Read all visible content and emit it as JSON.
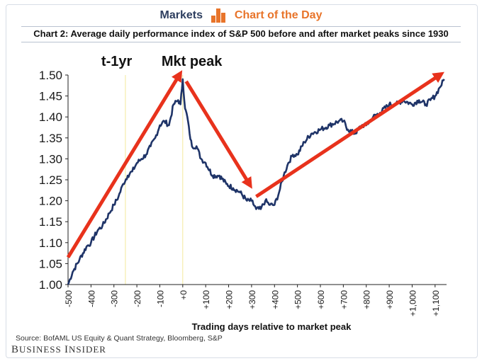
{
  "header": {
    "left_word": "Markets",
    "right_word": "Chart of the Day",
    "logo_icon": "bar-chart-icon",
    "accent_color": "#e8742a",
    "navy_color": "#2d3e5f"
  },
  "footer": {
    "source": "Source: BofAML US Equity & Quant Strategy, Bloomberg, S&P",
    "brand_first": "B",
    "brand_rest1": "USINESS ",
    "brand_second": "I",
    "brand_rest2": "NSIDER"
  },
  "chart_data": {
    "type": "line",
    "title": "Chart 2: Average daily performance index of S&P 500 before and after market peaks since 1930",
    "xlabel": "Trading days relative to market peak",
    "ylabel": "",
    "xlim": [
      -500,
      1150
    ],
    "ylim": [
      1.0,
      1.5
    ],
    "y_ticks": [
      1.0,
      1.05,
      1.1,
      1.15,
      1.2,
      1.25,
      1.3,
      1.35,
      1.4,
      1.45,
      1.5
    ],
    "y_tick_labels": [
      "1.00",
      "1.05",
      "1.10",
      "1.15",
      "1.20",
      "1.25",
      "1.30",
      "1.35",
      "1.40",
      "1.45",
      "1.50"
    ],
    "x_ticks": [
      -500,
      -400,
      -300,
      -200,
      -100,
      0,
      100,
      200,
      300,
      400,
      500,
      600,
      700,
      800,
      900,
      1000,
      1100
    ],
    "x_tick_labels": [
      "-500",
      "-400",
      "-300",
      "-200",
      "-100",
      "+0",
      "+100",
      "+200",
      "+300",
      "+400",
      "+500",
      "+600",
      "+700",
      "+800",
      "+900",
      "+1,000",
      "+1,100"
    ],
    "series": [
      {
        "name": "Average daily performance index",
        "color": "#1f3468",
        "x": [
          -500,
          -480,
          -450,
          -420,
          -400,
          -370,
          -350,
          -320,
          -300,
          -280,
          -260,
          -240,
          -220,
          -200,
          -180,
          -160,
          -140,
          -120,
          -100,
          -80,
          -60,
          -40,
          -20,
          -10,
          0,
          10,
          20,
          30,
          40,
          60,
          80,
          100,
          130,
          160,
          190,
          220,
          250,
          280,
          300,
          320,
          340,
          360,
          380,
          400,
          420,
          440,
          460,
          480,
          500,
          530,
          560,
          600,
          640,
          680,
          700,
          720,
          750,
          780,
          800,
          830,
          860,
          900,
          930,
          960,
          1000,
          1030,
          1060,
          1080,
          1100,
          1120,
          1140
        ],
        "values": [
          1.0,
          1.03,
          1.06,
          1.09,
          1.1,
          1.13,
          1.14,
          1.17,
          1.19,
          1.21,
          1.24,
          1.26,
          1.27,
          1.29,
          1.3,
          1.31,
          1.33,
          1.35,
          1.38,
          1.39,
          1.38,
          1.43,
          1.44,
          1.43,
          1.49,
          1.42,
          1.4,
          1.36,
          1.33,
          1.33,
          1.3,
          1.29,
          1.26,
          1.26,
          1.24,
          1.23,
          1.22,
          1.2,
          1.2,
          1.18,
          1.18,
          1.2,
          1.19,
          1.19,
          1.22,
          1.26,
          1.29,
          1.31,
          1.31,
          1.34,
          1.36,
          1.37,
          1.38,
          1.39,
          1.39,
          1.37,
          1.36,
          1.38,
          1.38,
          1.4,
          1.41,
          1.43,
          1.43,
          1.44,
          1.43,
          1.44,
          1.43,
          1.44,
          1.45,
          1.47,
          1.49
        ]
      }
    ],
    "annotations": {
      "labels": [
        {
          "text": "t-1yr",
          "x": -250
        },
        {
          "text": "Mkt peak",
          "x": 0
        }
      ],
      "reference_lines": [
        -250,
        0
      ],
      "arrows_color": "#e8321c",
      "arrows": [
        {
          "from": [
            -500,
            1.065
          ],
          "to": [
            -15,
            1.5
          ]
        },
        {
          "from": [
            15,
            1.485
          ],
          "to": [
            290,
            1.24
          ]
        },
        {
          "from": [
            320,
            1.21
          ],
          "to": [
            1120,
            1.5
          ]
        }
      ]
    }
  }
}
